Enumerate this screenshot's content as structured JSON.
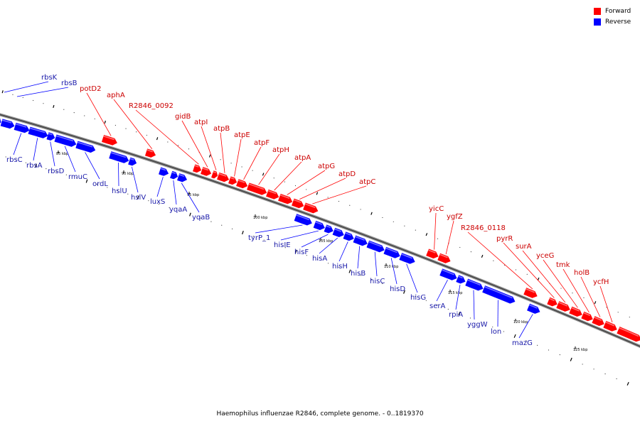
{
  "caption": "Haemophilus influenzae R2846, complete genome. - 0..1819370",
  "legend": {
    "items": [
      {
        "label": "Forward",
        "color": "#ff0000"
      },
      {
        "label": "Reverse",
        "color": "#0000ff"
      }
    ]
  },
  "colors": {
    "forward": "#ff0000",
    "forward_light": "#ff9a9a",
    "reverse": "#0000ff",
    "reverse_light": "#9a9aff",
    "forward_text": "#cc0000",
    "reverse_text": "#1a1aaa",
    "backbone": "#777777"
  },
  "scale": {
    "ticks": [
      "85 kbp",
      "90 kbp",
      "95 kbp",
      "100 kbp",
      "105 kbp",
      "110 kbp",
      "115 kbp",
      "120 kbp",
      "125 kbp"
    ]
  },
  "forward_genes": [
    "potD2",
    "aphA",
    "R2846_0092",
    "gidB",
    "atpI",
    "atpB",
    "atpE",
    "atpF",
    "atpH",
    "atpA",
    "atpG",
    "atpD",
    "atpC",
    "yicC",
    "ygfZ",
    "R2846_0118",
    "pyrR",
    "surA",
    "yceG",
    "tmk",
    "holB",
    "ycfH"
  ],
  "reverse_genes": [
    "rbsK",
    "rbsB",
    "rbsC",
    "rbsA",
    "rbsD",
    "rmuC",
    "ordL",
    "hslU",
    "hslV",
    "luxS",
    "yqaA",
    "yqaB",
    "tyrP_1",
    "hisIE",
    "hisF",
    "hisA",
    "hisH",
    "hisB",
    "hisC",
    "hisD",
    "hisG",
    "serA",
    "rpiA",
    "yggW",
    "lon",
    "mazG"
  ]
}
